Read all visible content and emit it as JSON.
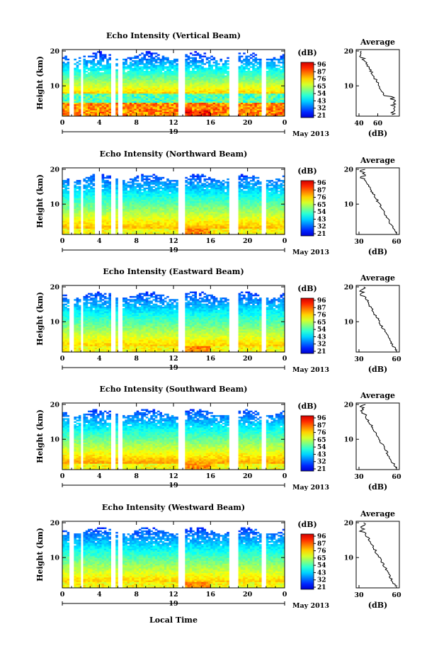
{
  "shared": {
    "xlabel": "Local Time",
    "ylabel": "Height (km)",
    "date_label": "May 2013",
    "day_label": "19",
    "x_ticks": [
      "0",
      "4",
      "8",
      "12",
      "16",
      "20",
      "0"
    ],
    "y_ticks": [
      "20",
      "10"
    ],
    "colorbar_unit": "(dB)",
    "avg_title": "Average",
    "avg_xlabel": "(dB)"
  },
  "chart_data": [
    {
      "type": "heatmap",
      "title": "Echo Intensity (Vertical Beam)",
      "colorbar_ticks": [
        "96",
        "87",
        "76",
        "65",
        "54",
        "43",
        "32",
        "21"
      ],
      "gaps": [
        [
          0.7,
          1.2
        ],
        [
          1.9,
          2.3
        ],
        [
          5.3,
          5.8
        ],
        [
          6.1,
          6.6
        ],
        [
          12.6,
          13.2
        ],
        [
          17.9,
          19.0
        ],
        [
          20.4,
          20.6
        ],
        [
          21.6,
          22.1
        ]
      ],
      "strength": 1.0,
      "avg_profile": {
        "xlim": [
          40,
          80
        ],
        "x_ticks": [
          "40",
          "60"
        ]
      }
    },
    {
      "type": "heatmap",
      "title": "Echo Intensity (Northward Beam)",
      "colorbar_ticks": [
        "96",
        "87",
        "76",
        "65",
        "54",
        "43",
        "32",
        "21"
      ],
      "gaps": [
        [
          0.7,
          1.2
        ],
        [
          1.9,
          2.3
        ],
        [
          3.6,
          4.2
        ],
        [
          5.3,
          5.8
        ],
        [
          6.1,
          6.6
        ],
        [
          12.6,
          13.2
        ],
        [
          17.9,
          19.0
        ],
        [
          20.4,
          20.6
        ],
        [
          21.6,
          22.1
        ]
      ],
      "strength": 0.75,
      "avg_profile": {
        "xlim": [
          30,
          60
        ],
        "x_ticks": [
          "30",
          "60"
        ]
      }
    },
    {
      "type": "heatmap",
      "title": "Echo Intensity (Eastward Beam)",
      "colorbar_ticks": [
        "96",
        "87",
        "76",
        "65",
        "54",
        "43",
        "32",
        "21"
      ],
      "gaps": [
        [
          0.7,
          1.2
        ],
        [
          1.9,
          2.3
        ],
        [
          5.3,
          5.8
        ],
        [
          6.1,
          6.6
        ],
        [
          12.6,
          13.2
        ],
        [
          17.9,
          19.0
        ],
        [
          20.4,
          20.6
        ],
        [
          21.6,
          22.1
        ]
      ],
      "strength": 0.72,
      "avg_profile": {
        "xlim": [
          30,
          60
        ],
        "x_ticks": [
          "30",
          "60"
        ]
      }
    },
    {
      "type": "heatmap",
      "title": "Echo Intensity (Southward Beam)",
      "colorbar_ticks": [
        "96",
        "87",
        "76",
        "65",
        "54",
        "43",
        "32",
        "21"
      ],
      "gaps": [
        [
          0.7,
          1.2
        ],
        [
          1.9,
          2.3
        ],
        [
          5.3,
          5.8
        ],
        [
          6.1,
          6.6
        ],
        [
          12.6,
          13.2
        ],
        [
          17.9,
          19.0
        ],
        [
          20.4,
          20.6
        ],
        [
          21.6,
          22.1
        ]
      ],
      "strength": 0.78,
      "avg_profile": {
        "xlim": [
          30,
          60
        ],
        "x_ticks": [
          "30",
          "60"
        ]
      }
    },
    {
      "type": "heatmap",
      "title": "Echo Intensity (Westward Beam)",
      "colorbar_ticks": [
        "96",
        "87",
        "76",
        "65",
        "54",
        "43",
        "32",
        "21"
      ],
      "gaps": [
        [
          0.7,
          1.2
        ],
        [
          1.9,
          2.3
        ],
        [
          5.3,
          5.8
        ],
        [
          6.1,
          6.6
        ],
        [
          12.6,
          13.2
        ],
        [
          17.9,
          19.0
        ],
        [
          20.4,
          20.6
        ],
        [
          21.6,
          22.1
        ]
      ],
      "strength": 0.72,
      "avg_profile": {
        "xlim": [
          30,
          60
        ],
        "x_ticks": [
          "30",
          "60"
        ]
      }
    }
  ]
}
